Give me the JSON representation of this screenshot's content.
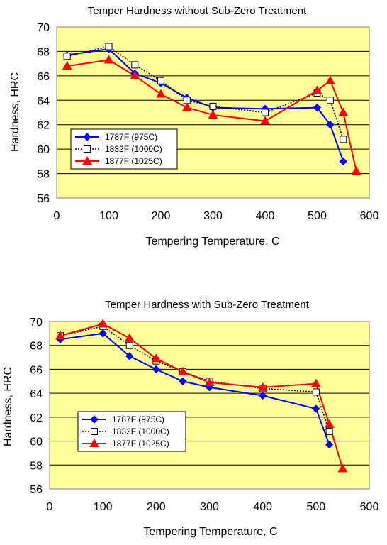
{
  "chart_data": [
    {
      "type": "line",
      "title": "Temper Hardness without Sub-Zero Treatment",
      "xlabel": "Tempering Temperature, C",
      "ylabel": "Hardness, HRC",
      "xlim": [
        0,
        600
      ],
      "ylim": [
        56,
        70
      ],
      "xticks": [
        "0",
        "100",
        "200",
        "300",
        "400",
        "500",
        "600"
      ],
      "yticks": [
        "56",
        "58",
        "60",
        "62",
        "64",
        "66",
        "68",
        "70"
      ],
      "grid": "horizontal",
      "legend_position": "left",
      "plot_background": "#ffff99",
      "series": [
        {
          "name": "1787F (975C)",
          "color": "#0000ff",
          "marker": "diamond",
          "line": "solid",
          "x": [
            20,
            100,
            150,
            200,
            250,
            300,
            400,
            500,
            525,
            550
          ],
          "y": [
            67.7,
            68.2,
            66.2,
            65.4,
            64.2,
            63.4,
            63.3,
            63.4,
            62.0,
            59.0
          ]
        },
        {
          "name": "1832F (1000C)",
          "color": "#000000",
          "marker": "square-open",
          "line": "dotted",
          "x": [
            20,
            100,
            150,
            200,
            250,
            300,
            400,
            500,
            525,
            550
          ],
          "y": [
            67.6,
            68.4,
            66.9,
            65.6,
            64.0,
            63.5,
            63.0,
            64.6,
            64.0,
            60.8
          ]
        },
        {
          "name": "1877F (1025C)",
          "color": "#ff0000",
          "marker": "triangle",
          "line": "solid",
          "x": [
            20,
            100,
            150,
            200,
            250,
            300,
            400,
            500,
            525,
            550,
            575
          ],
          "y": [
            66.8,
            67.3,
            66.0,
            64.5,
            63.4,
            62.8,
            62.3,
            64.8,
            65.6,
            63.0,
            58.2
          ]
        }
      ]
    },
    {
      "type": "line",
      "title": "Temper Hardness with Sub-Zero Treatment",
      "xlabel": "Tempering Temperature, C",
      "ylabel": "Hardness, HRC",
      "xlim": [
        0,
        600
      ],
      "ylim": [
        56,
        70
      ],
      "xticks": [
        "0",
        "100",
        "200",
        "300",
        "400",
        "500",
        "600"
      ],
      "yticks": [
        "56",
        "58",
        "60",
        "62",
        "64",
        "66",
        "68",
        "70"
      ],
      "grid": "horizontal",
      "legend_position": "bottom-left",
      "plot_background": "#ffff99",
      "series": [
        {
          "name": "1787F (975C)",
          "color": "#0000ff",
          "marker": "diamond",
          "line": "solid",
          "x": [
            20,
            100,
            150,
            200,
            250,
            300,
            400,
            500,
            525
          ],
          "y": [
            68.5,
            69.0,
            67.1,
            66.0,
            65.0,
            64.5,
            63.8,
            62.7,
            59.7
          ]
        },
        {
          "name": "1832F (1000C)",
          "color": "#000000",
          "marker": "square-open",
          "line": "dotted",
          "x": [
            20,
            100,
            150,
            200,
            250,
            300,
            400,
            500,
            525
          ],
          "y": [
            68.8,
            69.6,
            68.0,
            66.7,
            65.8,
            65.0,
            64.4,
            64.1,
            60.8
          ]
        },
        {
          "name": "1877F (1025C)",
          "color": "#ff0000",
          "marker": "triangle",
          "line": "solid",
          "x": [
            20,
            100,
            150,
            200,
            250,
            300,
            400,
            500,
            525,
            550
          ],
          "y": [
            68.8,
            69.8,
            68.6,
            66.9,
            65.8,
            64.9,
            64.5,
            64.8,
            61.4,
            57.7
          ]
        }
      ]
    }
  ]
}
